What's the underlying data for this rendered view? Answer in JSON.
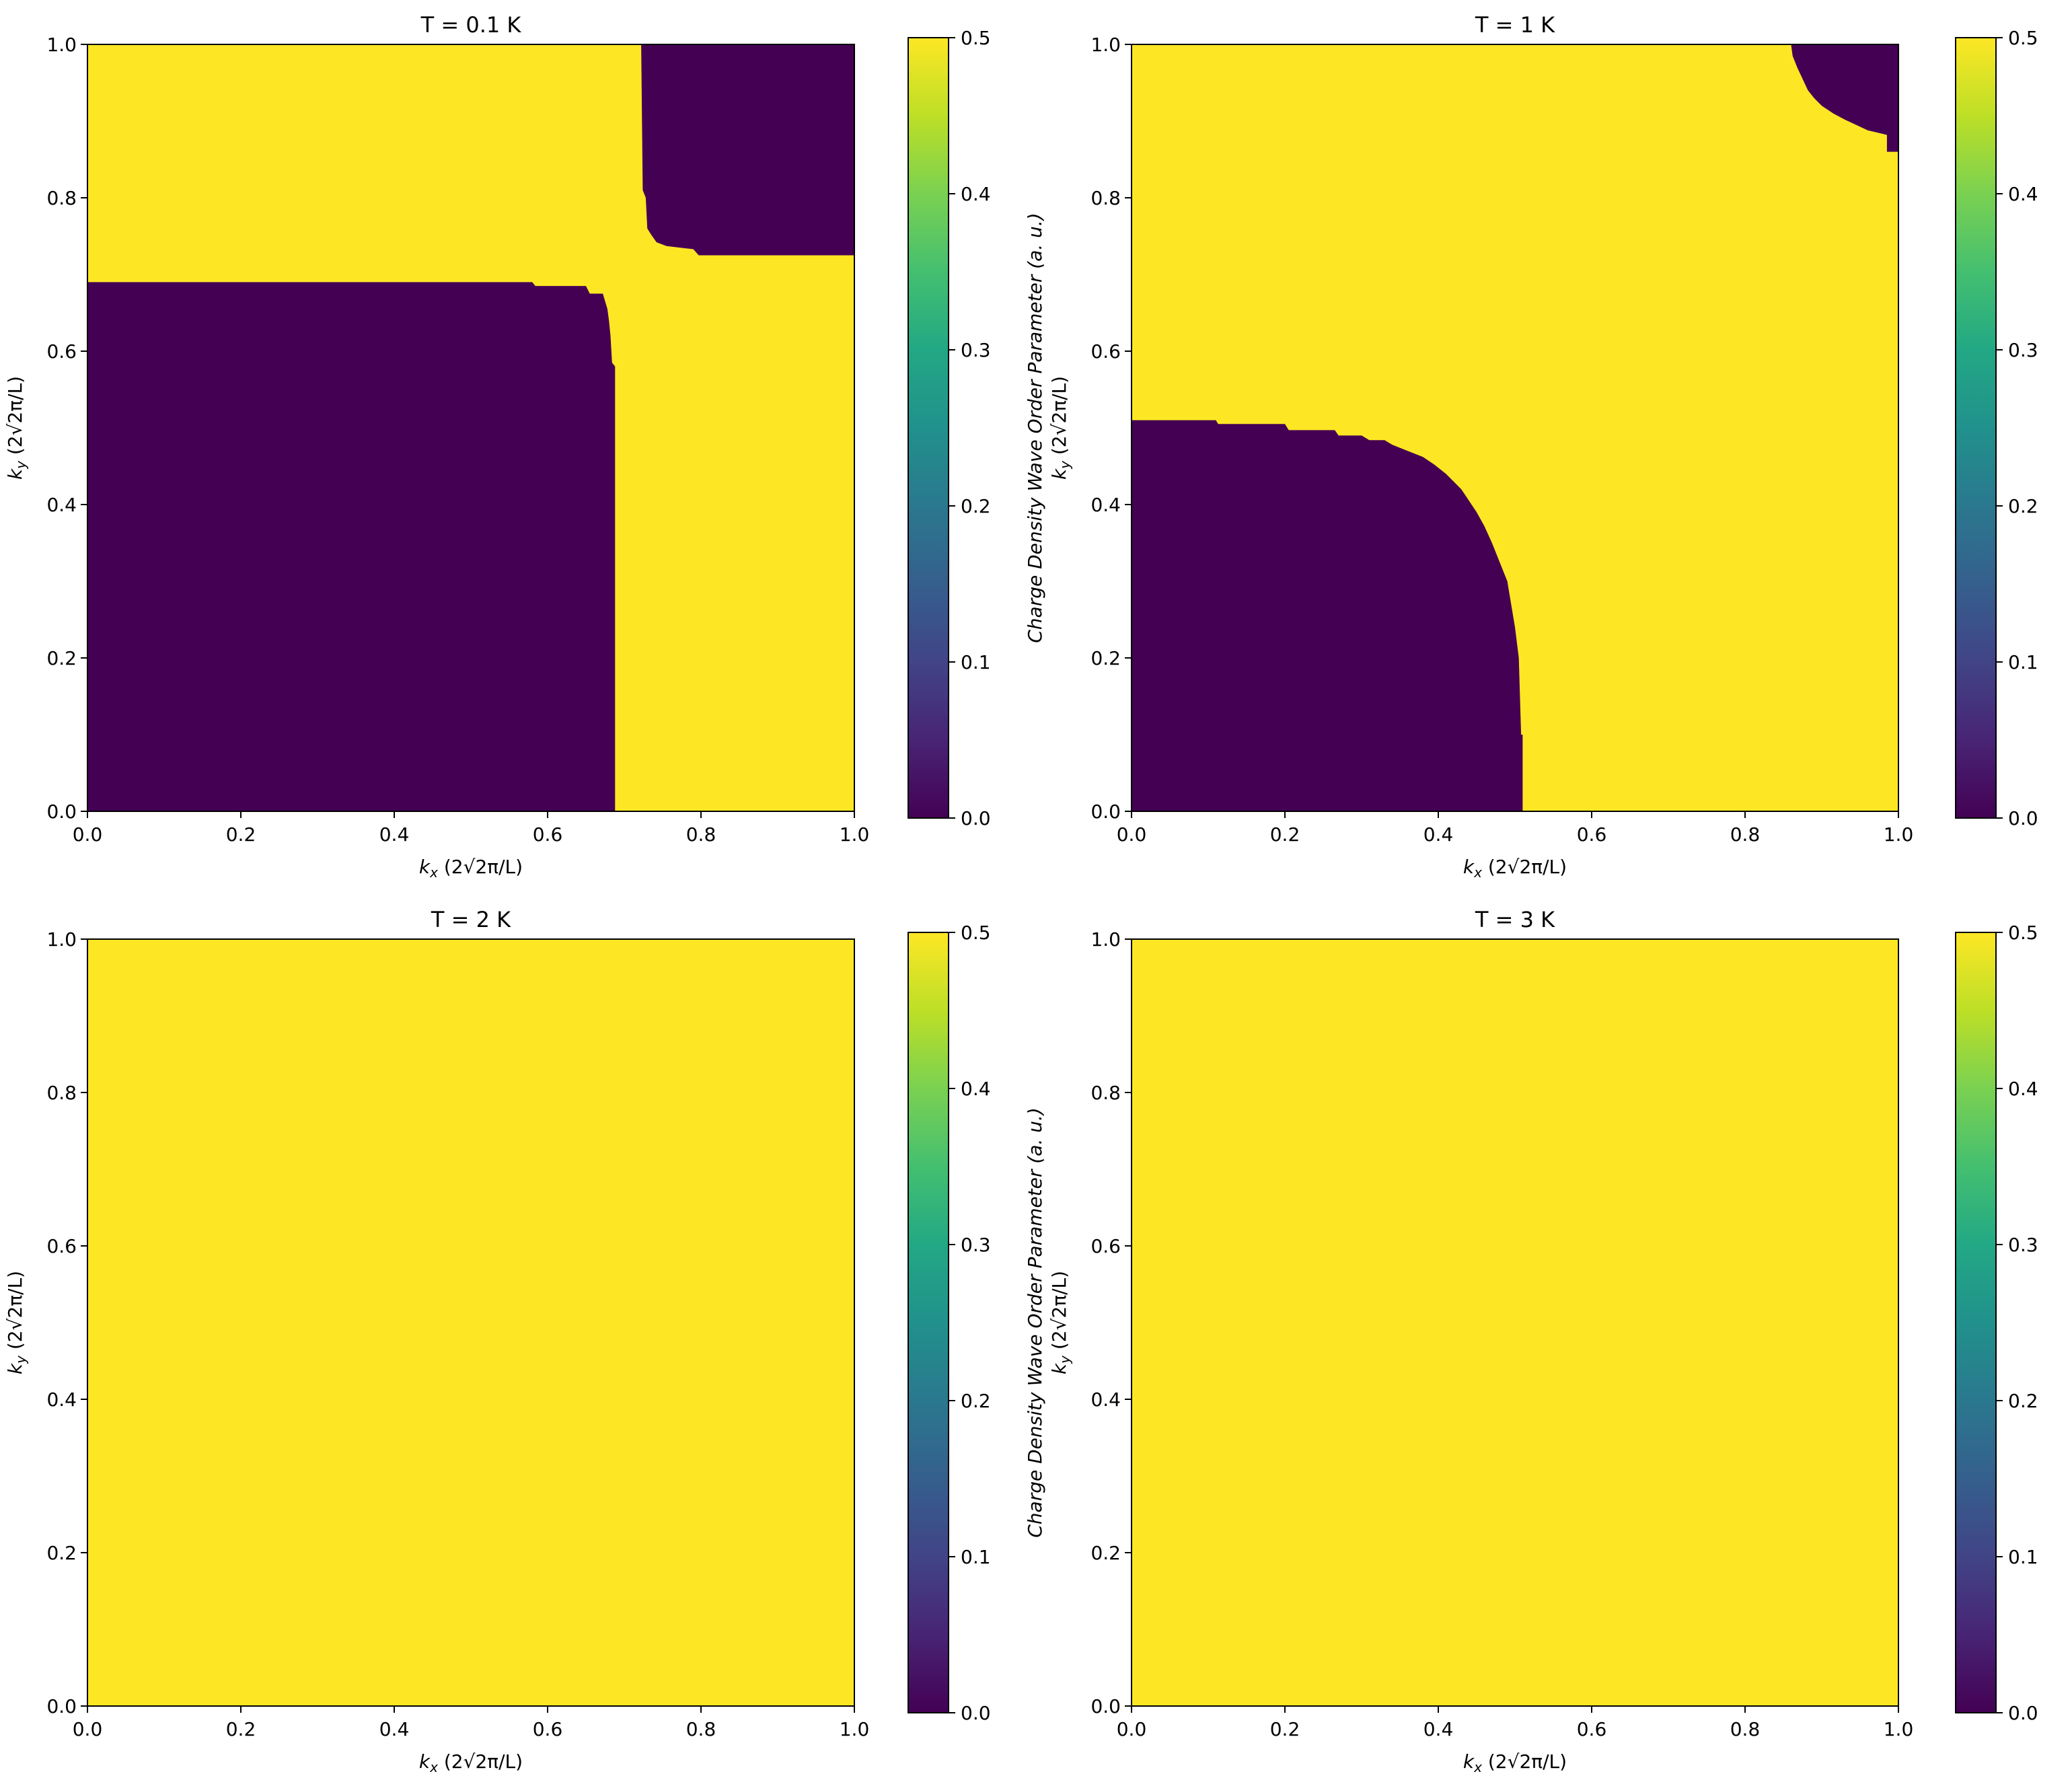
{
  "colors": {
    "low": "#440154",
    "high": "#fde725",
    "colormap": "viridis"
  },
  "chart_data": [
    {
      "type": "heatmap",
      "title": "T = 0.1 K",
      "xlabel_sym": "k",
      "xlabel_sub": "x",
      "xlabel_unit": "(2√2π/L)",
      "ylabel_sym": "k",
      "ylabel_sub": "y",
      "ylabel_unit": "(2√2π/L)",
      "xlim": [
        0,
        1
      ],
      "ylim": [
        0,
        1
      ],
      "xticks": [
        "0.0",
        "0.2",
        "0.4",
        "0.6",
        "0.8",
        "1.0"
      ],
      "yticks": [
        "0.0",
        "0.2",
        "0.4",
        "0.6",
        "0.8",
        "1.0"
      ],
      "background_value": 0.5,
      "low_regions": [
        {
          "value": 0.0,
          "polygon": [
            [
              0,
              0
            ],
            [
              0,
              0.69
            ],
            [
              0.58,
              0.69
            ],
            [
              0.584,
              0.685
            ],
            [
              0.65,
              0.685
            ],
            [
              0.655,
              0.675
            ],
            [
              0.672,
              0.675
            ],
            [
              0.675,
              0.665
            ],
            [
              0.678,
              0.655
            ],
            [
              0.68,
              0.64
            ],
            [
              0.682,
              0.62
            ],
            [
              0.684,
              0.585
            ],
            [
              0.688,
              0.58
            ],
            [
              0.688,
              0
            ]
          ]
        },
        {
          "value": 0.0,
          "polygon": [
            [
              0.722,
              1
            ],
            [
              0.724,
              0.81
            ],
            [
              0.728,
              0.8
            ],
            [
              0.73,
              0.76
            ],
            [
              0.735,
              0.752
            ],
            [
              0.742,
              0.742
            ],
            [
              0.755,
              0.737
            ],
            [
              0.79,
              0.733
            ],
            [
              0.797,
              0.725
            ],
            [
              1,
              0.725
            ],
            [
              1,
              1
            ]
          ]
        }
      ],
      "colorbar": {
        "label": "Charge Density Wave Order Parameter (a. u.)",
        "range": [
          0,
          0.5
        ],
        "ticks": [
          "0.0",
          "0.1",
          "0.2",
          "0.3",
          "0.4",
          "0.5"
        ]
      }
    },
    {
      "type": "heatmap",
      "title": "T = 1 K",
      "xlabel_sym": "k",
      "xlabel_sub": "x",
      "xlabel_unit": "(2√2π/L)",
      "ylabel_sym": "k",
      "ylabel_sub": "y",
      "ylabel_unit": "(2√2π/L)",
      "xlim": [
        0,
        1
      ],
      "ylim": [
        0,
        1
      ],
      "xticks": [
        "0.0",
        "0.2",
        "0.4",
        "0.6",
        "0.8",
        "1.0"
      ],
      "yticks": [
        "0.0",
        "0.2",
        "0.4",
        "0.6",
        "0.8",
        "1.0"
      ],
      "background_value": 0.5,
      "low_regions": [
        {
          "value": 0.0,
          "polygon": [
            [
              0,
              0
            ],
            [
              0,
              0.51
            ],
            [
              0.11,
              0.51
            ],
            [
              0.113,
              0.505
            ],
            [
              0.2,
              0.505
            ],
            [
              0.205,
              0.497
            ],
            [
              0.265,
              0.497
            ],
            [
              0.27,
              0.49
            ],
            [
              0.3,
              0.49
            ],
            [
              0.31,
              0.484
            ],
            [
              0.33,
              0.484
            ],
            [
              0.34,
              0.478
            ],
            [
              0.36,
              0.47
            ],
            [
              0.38,
              0.462
            ],
            [
              0.395,
              0.452
            ],
            [
              0.41,
              0.44
            ],
            [
              0.42,
              0.43
            ],
            [
              0.43,
              0.42
            ],
            [
              0.44,
              0.405
            ],
            [
              0.45,
              0.39
            ],
            [
              0.46,
              0.372
            ],
            [
              0.47,
              0.35
            ],
            [
              0.48,
              0.325
            ],
            [
              0.49,
              0.3
            ],
            [
              0.495,
              0.27
            ],
            [
              0.5,
              0.24
            ],
            [
              0.505,
              0.2
            ],
            [
              0.508,
              0.1
            ],
            [
              0.51,
              0.1
            ],
            [
              0.51,
              0
            ]
          ]
        },
        {
          "value": 0.0,
          "polygon": [
            [
              0.86,
              1
            ],
            [
              0.862,
              0.985
            ],
            [
              0.868,
              0.97
            ],
            [
              0.875,
              0.955
            ],
            [
              0.882,
              0.94
            ],
            [
              0.89,
              0.93
            ],
            [
              0.9,
              0.92
            ],
            [
              0.915,
              0.91
            ],
            [
              0.93,
              0.902
            ],
            [
              0.945,
              0.895
            ],
            [
              0.96,
              0.888
            ],
            [
              0.985,
              0.882
            ],
            [
              0.985,
              0.86
            ],
            [
              1,
              0.86
            ],
            [
              1,
              1
            ]
          ]
        }
      ],
      "colorbar": {
        "label": "Charge Density Wave Order Parameter (a. u.)",
        "range": [
          0,
          0.5
        ],
        "ticks": [
          "0.0",
          "0.1",
          "0.2",
          "0.3",
          "0.4",
          "0.5"
        ]
      }
    },
    {
      "type": "heatmap",
      "title": "T = 2 K",
      "xlabel_sym": "k",
      "xlabel_sub": "x",
      "xlabel_unit": "(2√2π/L)",
      "ylabel_sym": "k",
      "ylabel_sub": "y",
      "ylabel_unit": "(2√2π/L)",
      "xlim": [
        0,
        1
      ],
      "ylim": [
        0,
        1
      ],
      "xticks": [
        "0.0",
        "0.2",
        "0.4",
        "0.6",
        "0.8",
        "1.0"
      ],
      "yticks": [
        "0.0",
        "0.2",
        "0.4",
        "0.6",
        "0.8",
        "1.0"
      ],
      "background_value": 0.5,
      "low_regions": [],
      "colorbar": {
        "label": "Charge Density Wave Order Parameter (a. u.)",
        "range": [
          0,
          0.5
        ],
        "ticks": [
          "0.0",
          "0.1",
          "0.2",
          "0.3",
          "0.4",
          "0.5"
        ]
      }
    },
    {
      "type": "heatmap",
      "title": "T = 3 K",
      "xlabel_sym": "k",
      "xlabel_sub": "x",
      "xlabel_unit": "(2√2π/L)",
      "ylabel_sym": "k",
      "ylabel_sub": "y",
      "ylabel_unit": "(2√2π/L)",
      "xlim": [
        0,
        1
      ],
      "ylim": [
        0,
        1
      ],
      "xticks": [
        "0.0",
        "0.2",
        "0.4",
        "0.6",
        "0.8",
        "1.0"
      ],
      "yticks": [
        "0.0",
        "0.2",
        "0.4",
        "0.6",
        "0.8",
        "1.0"
      ],
      "background_value": 0.5,
      "low_regions": [],
      "colorbar": {
        "label": "Charge Density Wave Order Parameter (a. u.)",
        "range": [
          0,
          0.5
        ],
        "ticks": [
          "0.0",
          "0.1",
          "0.2",
          "0.3",
          "0.4",
          "0.5"
        ]
      }
    }
  ]
}
